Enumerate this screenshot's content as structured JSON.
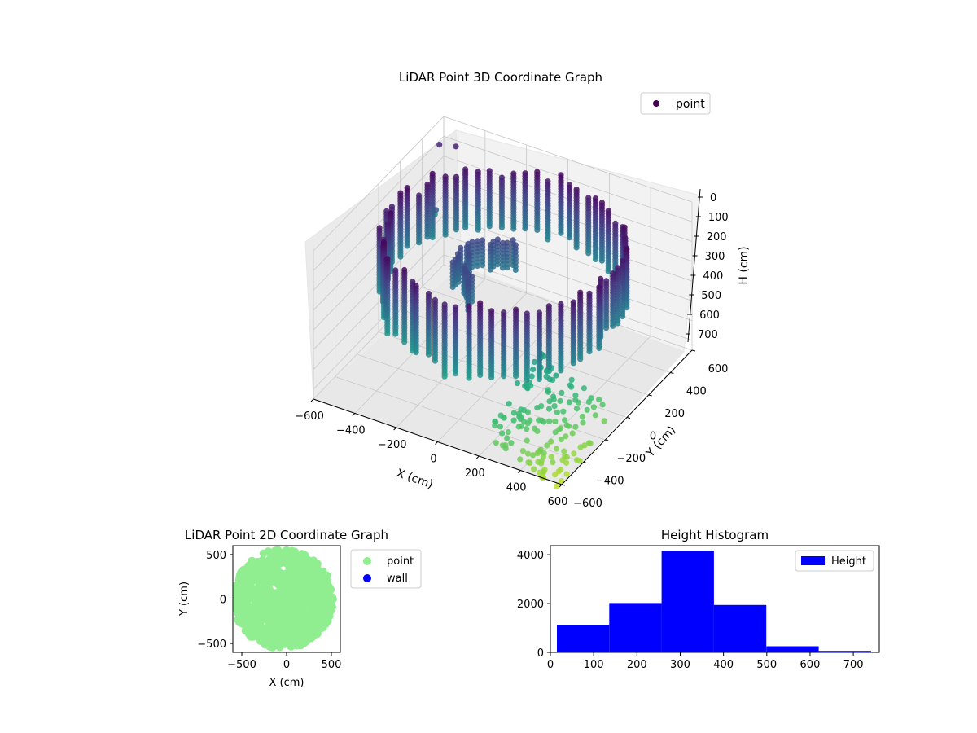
{
  "chart_data": [
    {
      "type": "scatter",
      "projection": "3d",
      "title": "LiDAR Point 3D Coordinate Graph",
      "xlabel": "X (cm)",
      "ylabel": "Y (cm)",
      "zlabel": "H (cm)",
      "xlim": [
        -600,
        600
      ],
      "ylim": [
        -600,
        600
      ],
      "zlim": [
        0,
        750
      ],
      "zaxis_inverted": true,
      "xticks": [
        -600,
        -400,
        -200,
        0,
        200,
        400,
        600
      ],
      "yticks": [
        -600,
        -400,
        -200,
        0,
        200,
        400,
        600
      ],
      "zticks": [
        0,
        100,
        200,
        300,
        400,
        500,
        600,
        700
      ],
      "colormap": "viridis",
      "legend": {
        "position": "top-right",
        "entries": [
          {
            "label": "point",
            "color": "#440154"
          }
        ]
      },
      "grid": true,
      "series": [
        {
          "name": "point",
          "description": "ring of points about radius 530 cm around the origin, heights 50-450 cm, plus a sparse tail of low points toward +X / -Y",
          "points": [
            {
              "x": -520,
              "y": 0,
              "h": 150
            },
            {
              "x": -300,
              "y": 420,
              "h": 120
            },
            {
              "x": 0,
              "y": 530,
              "h": 140
            },
            {
              "x": 300,
              "y": 420,
              "h": 160
            },
            {
              "x": 520,
              "y": 0,
              "h": 250
            },
            {
              "x": 380,
              "y": -360,
              "h": 300
            },
            {
              "x": 0,
              "y": -520,
              "h": 380
            },
            {
              "x": -380,
              "y": -360,
              "h": 260
            },
            {
              "x": -520,
              "y": 0,
              "h": 420
            },
            {
              "x": 0,
              "y": 530,
              "h": 400
            },
            {
              "x": 520,
              "y": 0,
              "h": 420
            },
            {
              "x": 0,
              "y": -520,
              "h": 450
            },
            {
              "x": 500,
              "y": -300,
              "h": 520
            },
            {
              "x": 560,
              "y": -450,
              "h": 620
            },
            {
              "x": 600,
              "y": -600,
              "h": 700
            }
          ]
        }
      ]
    },
    {
      "type": "scatter",
      "title": "LiDAR Point 2D Coordinate Graph",
      "xlabel": "X (cm)",
      "ylabel": "Y (cm)",
      "xlim": [
        -600,
        600
      ],
      "ylim": [
        -600,
        600
      ],
      "xticks": [
        -500,
        0,
        500
      ],
      "yticks": [
        -500,
        0,
        500
      ],
      "legend": {
        "position": "outside-right",
        "entries": [
          {
            "label": "point",
            "color": "#90ee90"
          },
          {
            "label": "wall",
            "color": "#0000ff"
          }
        ]
      },
      "series": [
        {
          "name": "point",
          "color": "#90ee90",
          "description": "filled disc of points covering X -600..600, Y -560..560"
        },
        {
          "name": "wall",
          "color": "#0000ff",
          "values": []
        }
      ]
    },
    {
      "type": "bar",
      "subtype": "histogram",
      "title": "Height Histogram",
      "xlabel": "",
      "ylabel": "",
      "bin_edges": [
        15,
        136,
        257,
        378,
        499,
        620,
        741
      ],
      "values": [
        1130,
        2020,
        4160,
        1940,
        250,
        60
      ],
      "xlim": [
        0,
        760
      ],
      "ylim": [
        0,
        4370
      ],
      "xticks": [
        0,
        100,
        200,
        300,
        400,
        500,
        600,
        700
      ],
      "yticks": [
        0,
        2000,
        4000
      ],
      "color": "#0000ff",
      "legend": {
        "position": "top-right",
        "entries": [
          {
            "label": "Height",
            "color": "#0000ff"
          }
        ]
      }
    }
  ]
}
